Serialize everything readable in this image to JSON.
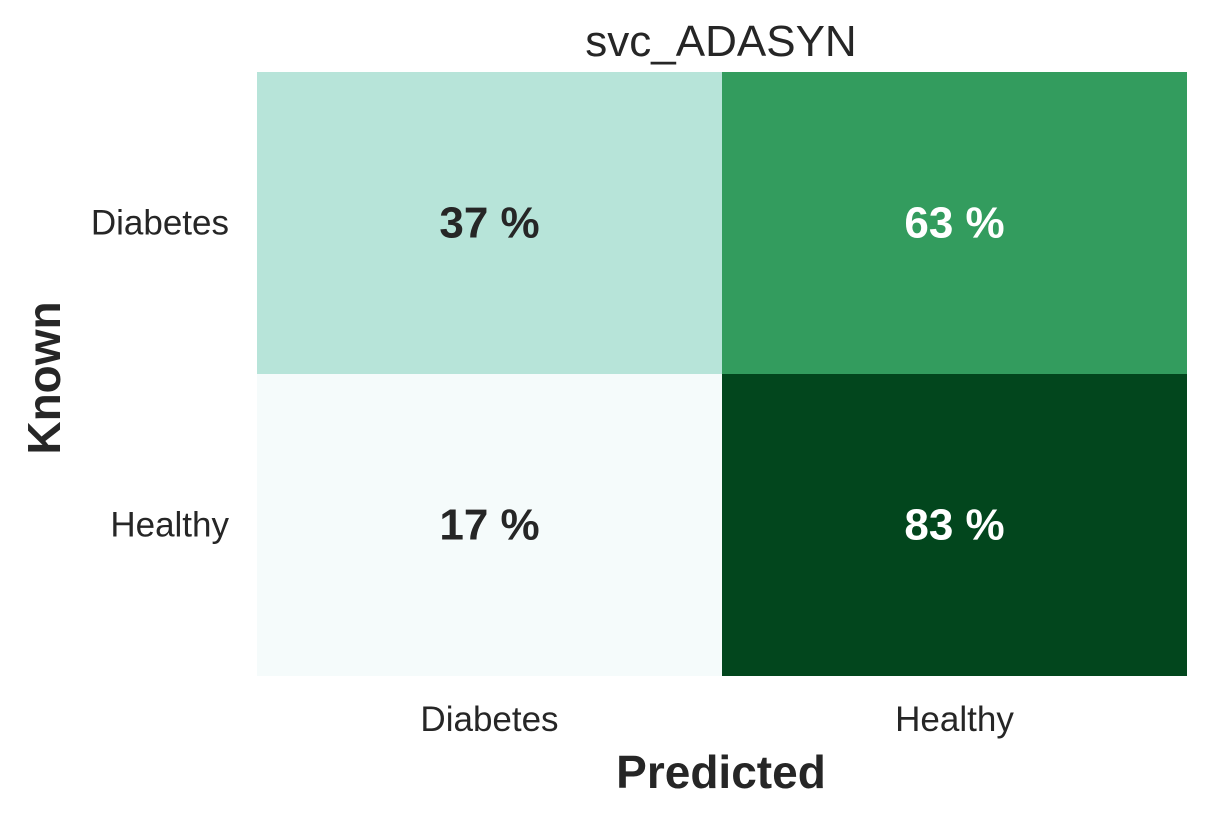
{
  "chart_data": {
    "type": "heatmap",
    "title": "svc_ADASYN",
    "xlabel": "Predicted",
    "ylabel": "Known",
    "x_categories": [
      "Diabetes",
      "Healthy"
    ],
    "y_categories": [
      "Diabetes",
      "Healthy"
    ],
    "values": [
      [
        37,
        63
      ],
      [
        17,
        83
      ]
    ],
    "cell_labels": [
      [
        "37 %",
        "63 %"
      ],
      [
        "17 %",
        "83 %"
      ]
    ],
    "colormap": "BuGn",
    "cell_colors": [
      [
        "#b7e4d9",
        "#339c5e"
      ],
      [
        "#f5fbfb",
        "#02461d"
      ]
    ],
    "label_colors": [
      [
        "#262626",
        "#ffffff"
      ],
      [
        "#262626",
        "#ffffff"
      ]
    ],
    "colorbar": false,
    "grid": false
  }
}
